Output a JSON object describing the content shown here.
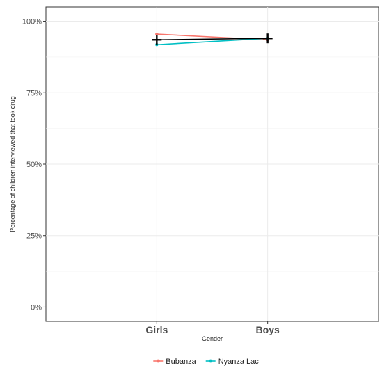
{
  "chart_data": {
    "type": "line",
    "categories": [
      "Girls",
      "Boys"
    ],
    "xlabel": "Gender",
    "ylabel": "Percentage of children interviewed that took drug",
    "ylim": [
      0,
      1
    ],
    "yticks": [
      {
        "value": 0,
        "label": "0%"
      },
      {
        "value": 0.25,
        "label": "25%"
      },
      {
        "value": 0.5,
        "label": "50%"
      },
      {
        "value": 0.75,
        "label": "75%"
      },
      {
        "value": 1.0,
        "label": "100%"
      }
    ],
    "series": [
      {
        "name": "Bubanza",
        "color": "#f8766d",
        "values": [
          0.955,
          0.935
        ]
      },
      {
        "name": "Nyanza Lac",
        "color": "#00bfc4",
        "values": [
          0.918,
          0.94
        ]
      }
    ],
    "overall_marker": {
      "color": "#000000",
      "values": [
        0.935,
        0.94
      ]
    },
    "grid": true,
    "legend_position": "bottom"
  }
}
